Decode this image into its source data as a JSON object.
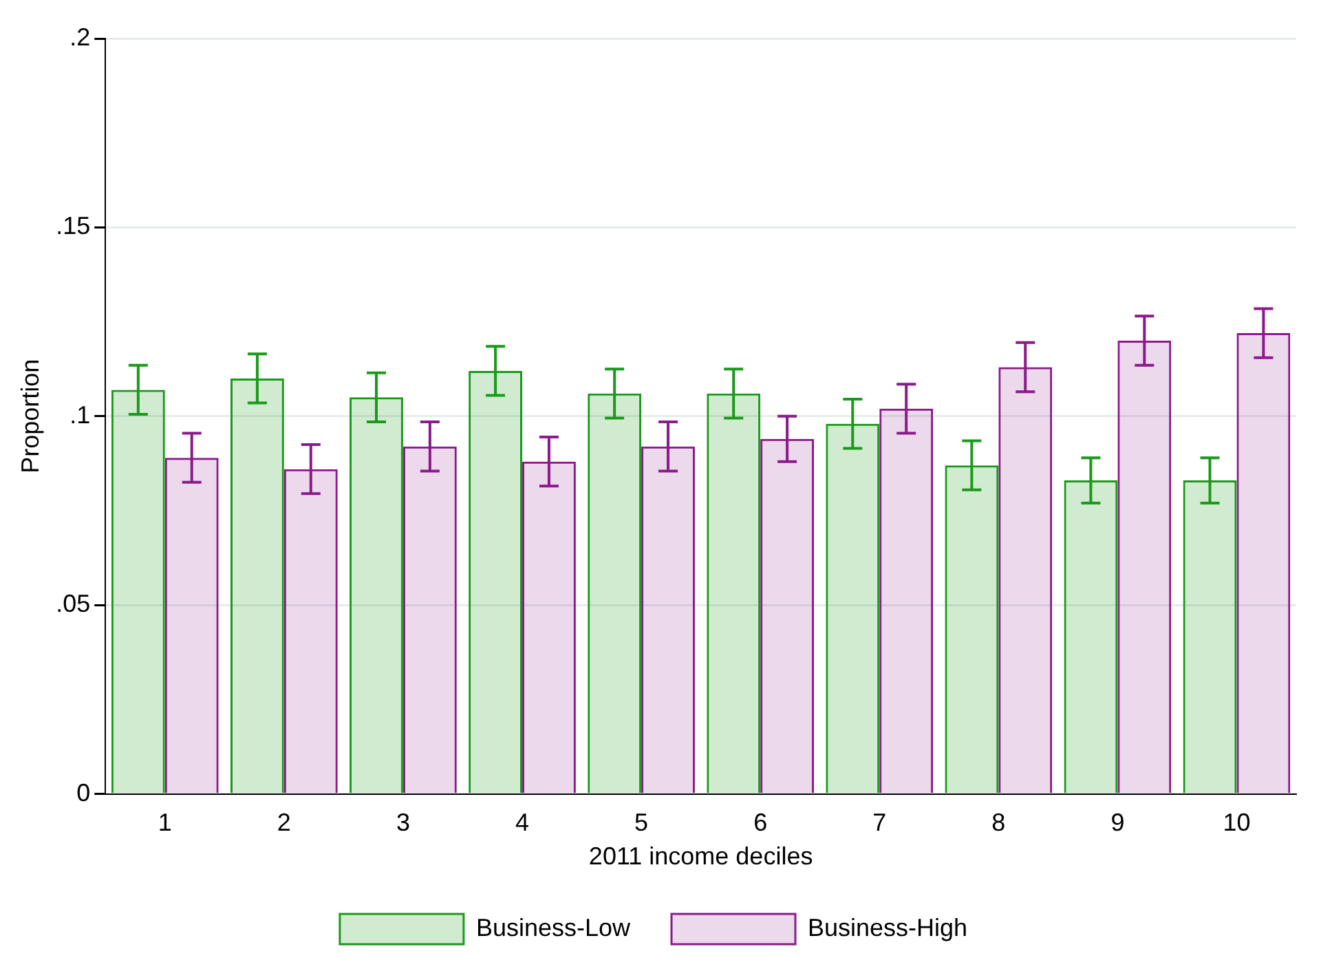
{
  "chart_data": {
    "type": "bar",
    "xlabel": "2011 income deciles",
    "ylabel": "Proportion",
    "categories": [
      "1",
      "2",
      "3",
      "4",
      "5",
      "6",
      "7",
      "8",
      "9",
      "10"
    ],
    "series": [
      {
        "name": "Business-Low",
        "color": "#1a9a1a",
        "values": [
          0.107,
          0.11,
          0.105,
          0.112,
          0.106,
          0.106,
          0.098,
          0.087,
          0.083,
          0.083
        ],
        "errors": [
          0.0065,
          0.0065,
          0.0065,
          0.0065,
          0.0065,
          0.0065,
          0.0065,
          0.0065,
          0.006,
          0.006
        ]
      },
      {
        "name": "Business-High",
        "color": "#8b1a8b",
        "values": [
          0.089,
          0.086,
          0.092,
          0.088,
          0.092,
          0.094,
          0.102,
          0.113,
          0.12,
          0.122
        ],
        "errors": [
          0.0065,
          0.0065,
          0.0065,
          0.0065,
          0.0065,
          0.006,
          0.0065,
          0.0065,
          0.0065,
          0.0065
        ]
      }
    ],
    "ylim": [
      0,
      0.2
    ],
    "yticks": [
      0,
      {
        "value": 0.05,
        "label": ".05"
      },
      {
        "value": 0.1,
        "label": ".1"
      },
      {
        "value": 0.15,
        "label": ".15"
      },
      {
        "value": 0.2,
        "label": ".2"
      }
    ],
    "grid": "y",
    "legend": "bottom"
  }
}
